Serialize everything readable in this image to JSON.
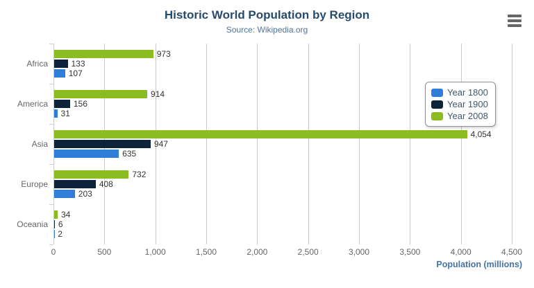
{
  "chart_data": {
    "type": "bar",
    "orientation": "horizontal",
    "title": "Historic World Population by Region",
    "subtitle": "Source: Wikipedia.org",
    "categories": [
      "Africa",
      "America",
      "Asia",
      "Europe",
      "Oceania"
    ],
    "series": [
      {
        "name": "Year 1800",
        "color": "#2f7ed8",
        "values": [
          107,
          31,
          635,
          203,
          2
        ]
      },
      {
        "name": "Year 1900",
        "color": "#0d233a",
        "values": [
          133,
          156,
          947,
          408,
          6
        ]
      },
      {
        "name": "Year 2008",
        "color": "#8bbc21",
        "values": [
          973,
          914,
          4054,
          732,
          34
        ]
      }
    ],
    "bars_top_to_bottom": [
      "Year 2008",
      "Year 1900",
      "Year 1800"
    ],
    "xlabel": "Population (millions)",
    "ylabel": "",
    "value_ticks": [
      0,
      500,
      1000,
      1500,
      2000,
      2500,
      3000,
      3500,
      4000,
      4500
    ],
    "xlim": [
      0,
      4500
    ],
    "grid": true,
    "data_labels": true,
    "legend_position": "right"
  },
  "colors": {
    "title": "#274b6d",
    "subtitle": "#4d759e",
    "axis_title": "#4572a7",
    "tick_label": "#666666",
    "category_label": "#666666",
    "data_label": "#333333",
    "grid_line": "#c8c8c8",
    "axis_line": "#c0d0e0",
    "legend_border": "#909090",
    "legend_text": "#3e576f",
    "menu_icon": "#666666",
    "background": "#ffffff"
  }
}
